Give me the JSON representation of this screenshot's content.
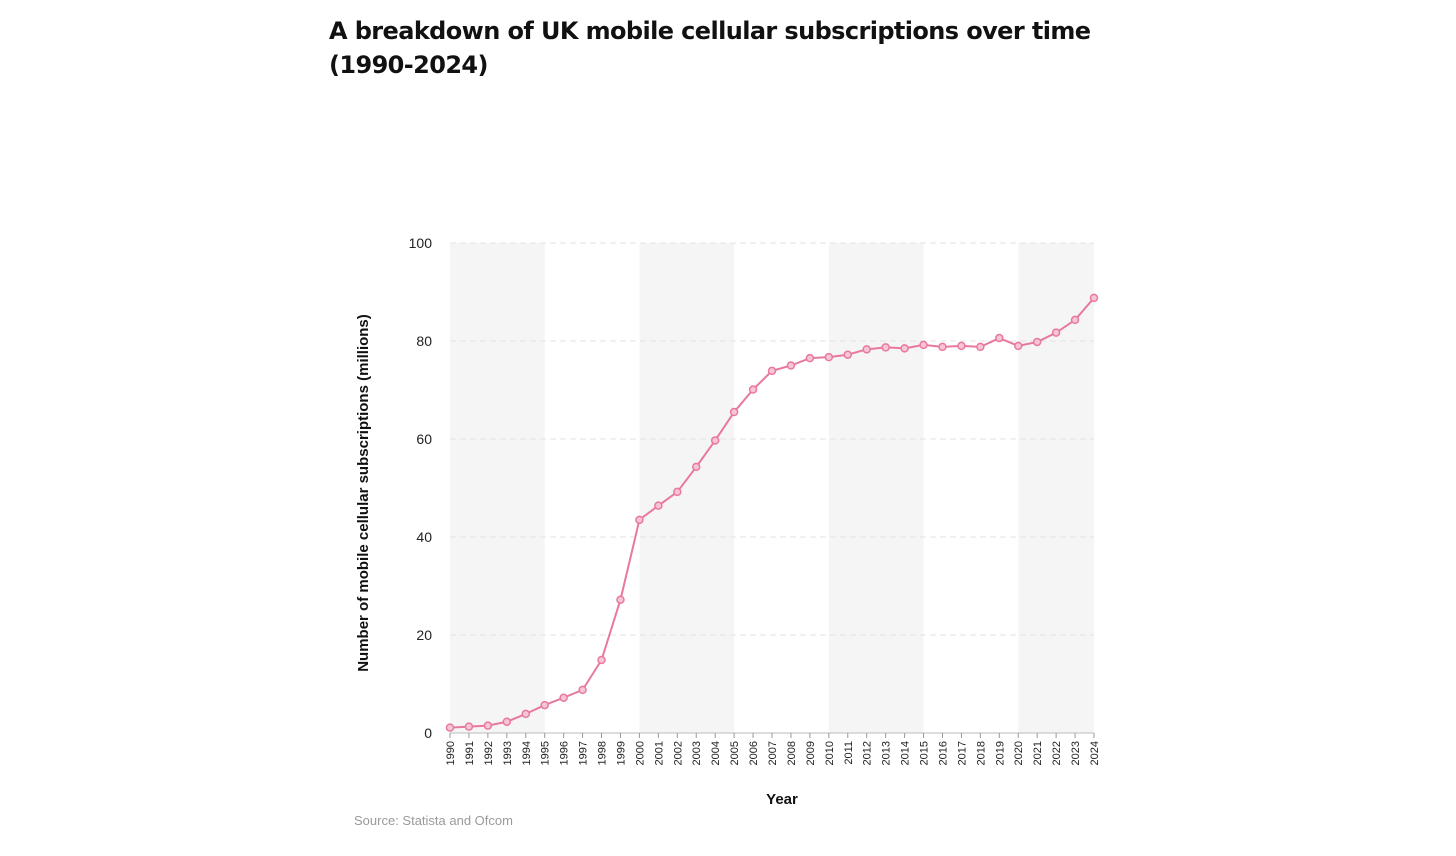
{
  "title": "A breakdown of UK mobile cellular subscriptions over time (1990-2024)",
  "source": "Source: Statista and Ofcom",
  "colors": {
    "line": "#e8799c",
    "marker_fill": "#f7c6d6",
    "band": "#f5f5f5",
    "grid": "#e3e3e3",
    "text": "#222222"
  },
  "chart_data": {
    "type": "line",
    "xlabel": "Year",
    "ylabel": "Number of mobile cellular subscriptions (millions)",
    "ylim": [
      0,
      100
    ],
    "yticks": [
      "0",
      "20",
      "40",
      "60",
      "80",
      "100"
    ],
    "grid": true,
    "x": [
      "1990",
      "1991",
      "1992",
      "1993",
      "1994",
      "1995",
      "1996",
      "1997",
      "1998",
      "1999",
      "2000",
      "2001",
      "2002",
      "2003",
      "2004",
      "2005",
      "2006",
      "2007",
      "2008",
      "2009",
      "2010",
      "2011",
      "2012",
      "2013",
      "2014",
      "2015",
      "2016",
      "2017",
      "2018",
      "2019",
      "2020",
      "2021",
      "2022",
      "2023",
      "2024"
    ],
    "series": [
      {
        "values": [
          1.1,
          1.3,
          1.5,
          2.3,
          3.9,
          5.7,
          7.2,
          8.8,
          14.9,
          27.2,
          43.5,
          46.4,
          49.2,
          54.3,
          59.7,
          65.5,
          70.1,
          73.9,
          75.0,
          76.5,
          76.7,
          77.2,
          78.3,
          78.7,
          78.5,
          79.2,
          78.8,
          79.0,
          78.8,
          80.6,
          79.0,
          79.8,
          81.7,
          84.3,
          88.8
        ]
      }
    ]
  }
}
